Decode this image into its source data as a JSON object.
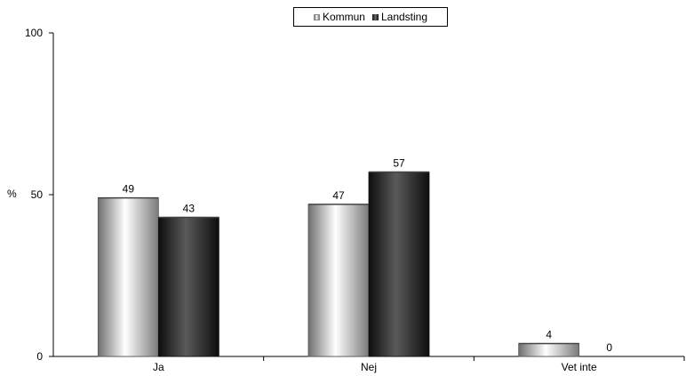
{
  "chart_data": {
    "type": "bar",
    "categories": [
      "Ja",
      "Nej",
      "Vet inte"
    ],
    "series": [
      {
        "name": "Kommun",
        "values": [
          49,
          47,
          4
        ],
        "labels": [
          "49",
          "47",
          "4"
        ],
        "style": "light"
      },
      {
        "name": "Landsting",
        "values": [
          43,
          57,
          0
        ],
        "labels": [
          "43",
          "57",
          "0"
        ],
        "style": "dark"
      }
    ],
    "ylabel": "%",
    "xlabel": "",
    "title": "",
    "ylim": [
      0,
      100
    ],
    "yticks": [
      0,
      50,
      100
    ],
    "grid": false,
    "legend_position": "top-center",
    "colors": {
      "light": "#e8e8e8",
      "dark": "#333333"
    }
  }
}
